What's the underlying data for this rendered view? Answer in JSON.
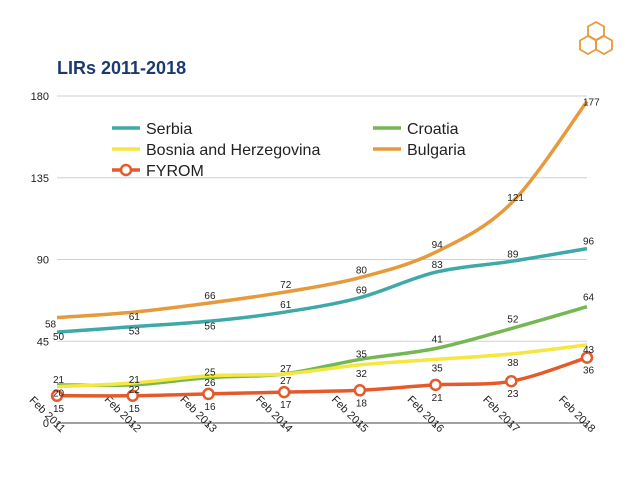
{
  "title": "LIRs 2011-2018",
  "chart_data": {
    "type": "line",
    "categories": [
      "Feb 2011",
      "Feb 2012",
      "Feb 2013",
      "Feb 2014",
      "Feb 2015",
      "Feb 2016",
      "Feb 2017",
      "Feb 2018"
    ],
    "ylim": [
      0,
      180
    ],
    "yticks": [
      0,
      45,
      90,
      135,
      180
    ],
    "legend": "top-left, inside plot",
    "series": [
      {
        "name": "Serbia",
        "color": "#3fa9a8",
        "values": [
          50,
          53,
          56,
          61,
          69,
          83,
          89,
          96
        ],
        "marker": false
      },
      {
        "name": "Croatia",
        "color": "#74b754",
        "values": [
          21,
          21,
          25,
          27,
          35,
          41,
          52,
          64
        ],
        "marker": false
      },
      {
        "name": "Bosnia and Herzegovina",
        "color": "#f5e642",
        "values": [
          20,
          22,
          26,
          27,
          32,
          35,
          38,
          43
        ],
        "marker": false
      },
      {
        "name": "Bulgaria",
        "color": "#e69a3b",
        "values": [
          58,
          61,
          66,
          72,
          80,
          94,
          121,
          177
        ],
        "marker": false
      },
      {
        "name": "FYROM",
        "color": "#e55a2b",
        "values": [
          15,
          15,
          16,
          17,
          18,
          21,
          23,
          36
        ],
        "marker": true
      }
    ]
  }
}
